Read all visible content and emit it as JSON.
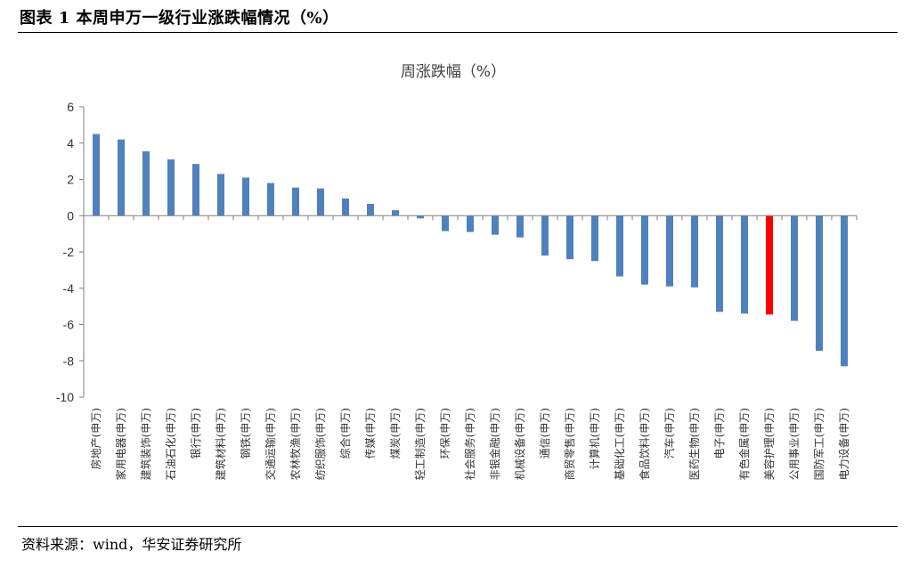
{
  "figure": {
    "title": "图表 1 本周申万一级行业涨跌幅情况（%）",
    "source": "资料来源：wind，华安证券研究所"
  },
  "chart_data": {
    "type": "bar",
    "title": "周涨跌幅（%）",
    "xlabel": "",
    "ylabel": "",
    "ylim": [
      -10,
      6
    ],
    "yticks": [
      6,
      4,
      2,
      0,
      -2,
      -4,
      -6,
      -8,
      -10
    ],
    "grid": false,
    "legend": "none",
    "default_color": "#4f81bd",
    "highlight_color": "#ff0000",
    "highlight_category": "美容护理(申万)",
    "categories": [
      "房地产(申万)",
      "家用电器(申万)",
      "建筑装饰(申万)",
      "石油石化(申万)",
      "银行(申万)",
      "建筑材料(申万)",
      "钢铁(申万)",
      "交通运输(申万)",
      "农林牧渔(申万)",
      "纺织服饰(申万)",
      "综合(申万)",
      "传媒(申万)",
      "煤炭(申万)",
      "轻工制造(申万)",
      "环保(申万)",
      "社会服务(申万)",
      "非银金融(申万)",
      "机械设备(申万)",
      "通信(申万)",
      "商贸零售(申万)",
      "计算机(申万)",
      "基础化工(申万)",
      "食品饮料(申万)",
      "汽车(申万)",
      "医药生物(申万)",
      "电子(申万)",
      "有色金属(申万)",
      "美容护理(申万)",
      "公用事业(申万)",
      "国防军工(申万)",
      "电力设备(申万)"
    ],
    "values": [
      4.5,
      4.2,
      3.55,
      3.1,
      2.85,
      2.3,
      2.1,
      1.8,
      1.55,
      1.5,
      0.95,
      0.65,
      0.3,
      -0.15,
      -0.85,
      -0.9,
      -1.05,
      -1.2,
      -2.2,
      -2.4,
      -2.5,
      -3.35,
      -3.8,
      -3.9,
      -3.95,
      -5.3,
      -5.4,
      -5.45,
      -5.8,
      -7.45,
      -8.3
    ]
  }
}
